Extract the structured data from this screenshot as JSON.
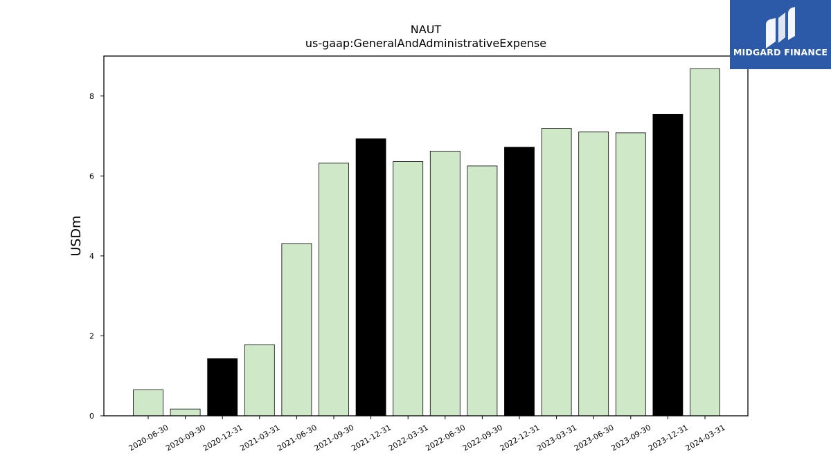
{
  "logo": {
    "text": "MIDGARD FINANCE",
    "icon": "midgard-m-icon",
    "background": "#2d5aa8"
  },
  "chart_data": {
    "type": "bar",
    "title": "NAUT",
    "subtitle": "us-gaap:GeneralAndAdministrativeExpense",
    "xlabel": "",
    "ylabel": "USDm",
    "ylim": [
      0,
      9
    ],
    "yticks": [
      "0",
      "2",
      "4",
      "6",
      "8"
    ],
    "categories": [
      "2020-06-30",
      "2020-09-30",
      "2020-12-31",
      "2021-03-31",
      "2021-06-30",
      "2021-09-30",
      "2021-12-31",
      "2022-03-31",
      "2022-06-30",
      "2022-09-30",
      "2022-12-31",
      "2023-03-31",
      "2023-06-30",
      "2023-09-30",
      "2023-12-31",
      "2024-03-31"
    ],
    "values": [
      0.65,
      0.17,
      1.43,
      1.78,
      4.31,
      6.32,
      6.93,
      6.36,
      6.62,
      6.25,
      6.72,
      7.19,
      7.1,
      7.08,
      7.54,
      8.68
    ],
    "bar_colors": [
      "#cfe9c8",
      "#cfe9c8",
      "#000000",
      "#cfe9c8",
      "#cfe9c8",
      "#cfe9c8",
      "#000000",
      "#cfe9c8",
      "#cfe9c8",
      "#cfe9c8",
      "#000000",
      "#cfe9c8",
      "#cfe9c8",
      "#cfe9c8",
      "#000000",
      "#cfe9c8"
    ],
    "grid": false,
    "legend": "none"
  }
}
